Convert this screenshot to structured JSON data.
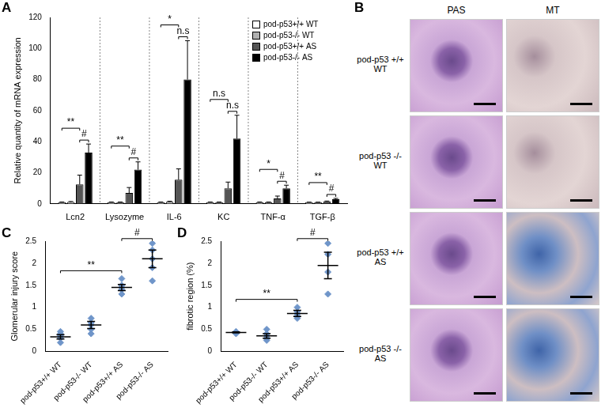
{
  "chart_data": [
    {
      "label": "A",
      "type": "bar",
      "y_label": "Relative quantity of mRNA expression",
      "categories": [
        "Lcn2",
        "Lysozyme",
        "IL-6",
        "KC",
        "TNF-α",
        "TGF-β"
      ],
      "series": [
        {
          "name": "pod-p53+/+ WT",
          "color": "#ffffff",
          "values": [
            1,
            1,
            1,
            1,
            1,
            1
          ],
          "errors": [
            0.2,
            0.2,
            0.2,
            0.2,
            0.2,
            0.1
          ]
        },
        {
          "name": "pod-p53-/- WT",
          "color": "#b0b0b0",
          "values": [
            1.2,
            1,
            1.3,
            1,
            1,
            1
          ],
          "errors": [
            0.3,
            0.2,
            0.4,
            0.2,
            0.2,
            0.1
          ]
        },
        {
          "name": "pod-p53+/+ AS",
          "color": "#555555",
          "values": [
            12.5,
            7,
            15.5,
            10,
            3.5,
            1.5
          ],
          "errors": [
            6,
            3.5,
            7,
            4,
            1.5,
            0.3
          ]
        },
        {
          "name": "pod-p53-/- AS",
          "color": "#000000",
          "values": [
            33,
            22,
            80,
            42,
            10,
            3
          ],
          "errors": [
            5.5,
            5,
            25,
            15,
            2,
            0.5
          ]
        }
      ],
      "ylim": [
        0,
        120
      ],
      "yticks": [
        0,
        20,
        40,
        60,
        80,
        100,
        120
      ],
      "grid": false,
      "legend": "upper right",
      "annotations": [
        {
          "category": "Lcn2",
          "text": "**",
          "from": "pod-p53+/+ WT",
          "to": "pod-p53+/+ AS"
        },
        {
          "category": "Lcn2",
          "text": "#",
          "from": "pod-p53+/+ AS",
          "to": "pod-p53-/- AS"
        },
        {
          "category": "Lysozyme",
          "text": "**",
          "from": "pod-p53+/+ WT",
          "to": "pod-p53+/+ AS"
        },
        {
          "category": "Lysozyme",
          "text": "#",
          "from": "pod-p53+/+ AS",
          "to": "pod-p53-/- AS"
        },
        {
          "category": "IL-6",
          "text": "*",
          "from": "pod-p53+/+ WT",
          "to": "pod-p53+/+ AS"
        },
        {
          "category": "IL-6",
          "text": "n.s",
          "from": "pod-p53+/+ AS",
          "to": "pod-p53-/- AS"
        },
        {
          "category": "KC",
          "text": "n.s",
          "from": "pod-p53+/+ WT",
          "to": "pod-p53+/+ AS"
        },
        {
          "category": "KC",
          "text": "n.s",
          "from": "pod-p53+/+ AS",
          "to": "pod-p53-/- AS"
        },
        {
          "category": "TNF-α",
          "text": "*",
          "from": "pod-p53+/+ WT",
          "to": "pod-p53+/+ AS"
        },
        {
          "category": "TNF-α",
          "text": "#",
          "from": "pod-p53+/+ AS",
          "to": "pod-p53-/- AS"
        },
        {
          "category": "TGF-β",
          "text": "**",
          "from": "pod-p53+/+ WT",
          "to": "pod-p53+/+ AS"
        },
        {
          "category": "TGF-β",
          "text": "#",
          "from": "pod-p53+/+ AS",
          "to": "pod-p53-/- AS"
        }
      ]
    },
    {
      "label": "C",
      "type": "scatter",
      "marker": "diamond",
      "color": "#6f95c9",
      "y_label": "Glomerular injury score",
      "categories": [
        "pod-p53+/+ WT",
        "pod-p53-/- WT",
        "pod-p53+/+ AS",
        "pod-p53-/- AS"
      ],
      "values": [
        [
          0.2,
          0.3,
          0.35,
          0.4,
          0.45
        ],
        [
          0.4,
          0.5,
          0.6,
          0.65,
          0.75
        ],
        [
          1.3,
          1.4,
          1.45,
          1.5,
          1.65
        ],
        [
          1.6,
          1.9,
          2.1,
          2.3,
          2.45
        ]
      ],
      "mean": [
        0.33,
        0.6,
        1.45,
        2.1
      ],
      "sem": [
        0.05,
        0.08,
        0.07,
        0.2
      ],
      "ylim": [
        0,
        2.5
      ],
      "yticks": [
        0,
        0.5,
        1,
        1.5,
        2,
        2.5
      ],
      "grid": false,
      "annotations": [
        {
          "text": "**",
          "from": "pod-p53+/+ WT",
          "to": "pod-p53+/+ AS"
        },
        {
          "text": "#",
          "from": "pod-p53+/+ AS",
          "to": "pod-p53-/- AS"
        }
      ]
    },
    {
      "label": "D",
      "type": "scatter",
      "marker": "diamond",
      "color": "#6f95c9",
      "y_label": "fibrotic region (%)",
      "categories": [
        "pod-p53+/+ WT",
        "pod-p53-/- WT",
        "pod-p53+/+ AS",
        "pod-p53-/- AS"
      ],
      "values": [
        [
          0.4,
          0.42,
          0.43,
          0.44,
          0.45
        ],
        [
          0.25,
          0.3,
          0.35,
          0.4,
          0.5
        ],
        [
          0.75,
          0.8,
          0.85,
          0.9,
          1.0
        ],
        [
          1.3,
          1.8,
          2.2,
          2.45
        ]
      ],
      "mean": [
        0.43,
        0.35,
        0.86,
        1.95
      ],
      "sem": [
        0.01,
        0.05,
        0.07,
        0.3
      ],
      "ylim": [
        0,
        2.5
      ],
      "yticks": [
        0,
        0.5,
        1,
        1.5,
        2,
        2.5
      ],
      "grid": false,
      "annotations": [
        {
          "text": "**",
          "from": "pod-p53+/+ WT",
          "to": "pod-p53+/+ AS"
        },
        {
          "text": "#",
          "from": "pod-p53+/+ AS",
          "to": "pod-p53-/- AS"
        }
      ]
    }
  ],
  "images": {
    "label": "B",
    "columns": [
      "PAS",
      "MT"
    ],
    "rows": [
      "pod-p53 +/+ WT",
      "pod-p53 -/- WT",
      "pod-p53 +/+ AS",
      "pod-p53 -/- AS"
    ]
  }
}
